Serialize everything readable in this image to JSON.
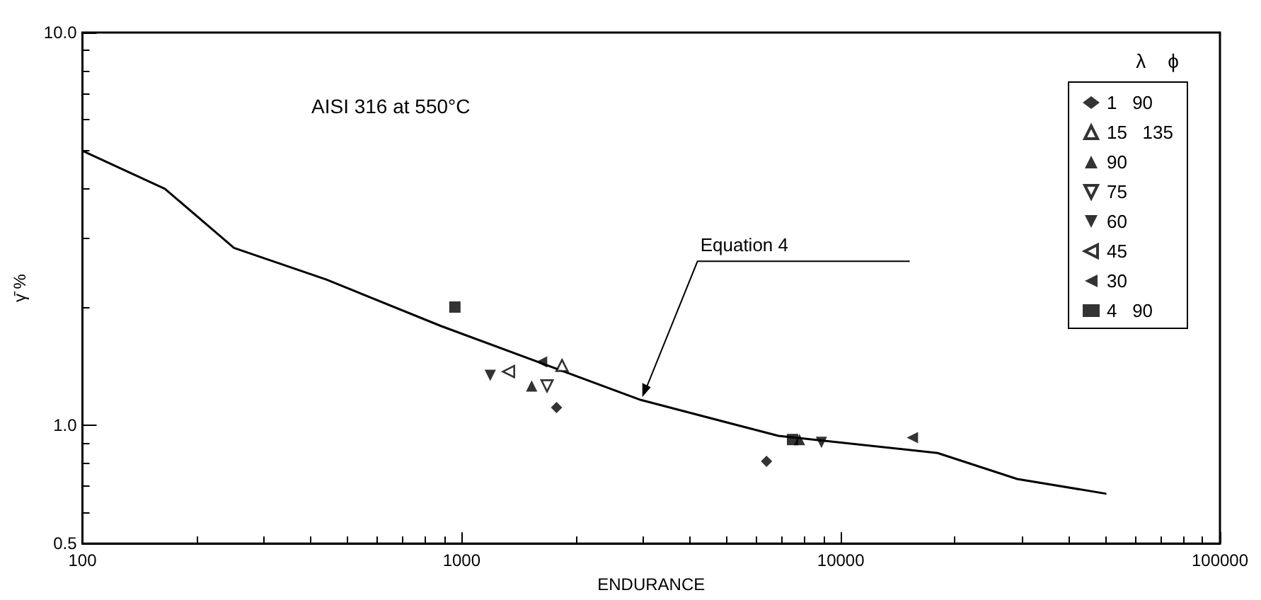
{
  "chart_data": {
    "type": "scatter",
    "xlabel": "ENDURANCE",
    "ylabel": "γ̄ %",
    "log": "xy",
    "grid": false,
    "legend": "top right",
    "legend_title": "λ    ϕ",
    "xlim": [
      100,
      100000
    ],
    "xticks": [
      100,
      1000,
      10000,
      100000
    ],
    "ylim": [
      0.5,
      10
    ],
    "yticks": [
      {
        "value": 0.5,
        "label": "0.5"
      },
      {
        "value": 1,
        "label": "1.0"
      },
      {
        "value": 10,
        "label": "10.0"
      }
    ],
    "annotations": [
      "AISI 316 at 550°C",
      {
        "text": "Equation 4",
        "x": 2970,
        "y": 1.16
      }
    ],
    "series": [
      {
        "type": "line",
        "marker": "none",
        "color": "#000000",
        "x": [
          100,
          165,
          251,
          440,
          882,
          2970,
          6850,
          18000,
          29200,
          49900
        ],
        "values": [
          5.0,
          4.0,
          2.83,
          2.35,
          1.79,
          1.16,
          0.94,
          0.85,
          0.73,
          0.67
        ]
      },
      {
        "name": "1   90",
        "marker": "diamond",
        "color": "#000000",
        "x": [
          1780,
          6370
        ],
        "values": [
          1.11,
          0.81
        ]
      },
      {
        "name": "15   135",
        "marker": "triangle-open",
        "color": "#000000",
        "x": [
          1840
        ],
        "values": [
          1.42
        ]
      },
      {
        "name": "90",
        "marker": "triangle",
        "color": "#000000",
        "x": [
          1530,
          7780
        ],
        "values": [
          1.26,
          0.92
        ]
      },
      {
        "name": "75",
        "marker": "triangle-down-open",
        "color": "#000000",
        "x": [
          1680
        ],
        "values": [
          1.26
        ]
      },
      {
        "name": "60",
        "marker": "triangle-down",
        "color": "#000000",
        "x": [
          1190,
          8890
        ],
        "values": [
          1.34,
          0.905
        ]
      },
      {
        "name": "45",
        "marker": "triangle-left-open",
        "color": "#000000",
        "x": [
          1330
        ],
        "values": [
          1.37
        ]
      },
      {
        "name": "30",
        "marker": "triangle-left",
        "color": "#000000",
        "x": [
          1625,
          15450
        ],
        "values": [
          1.45,
          0.93
        ]
      },
      {
        "name": "4   90",
        "marker": "square",
        "color": "#000000",
        "x": [
          960,
          7460
        ],
        "values": [
          2.0,
          0.92
        ]
      }
    ]
  }
}
